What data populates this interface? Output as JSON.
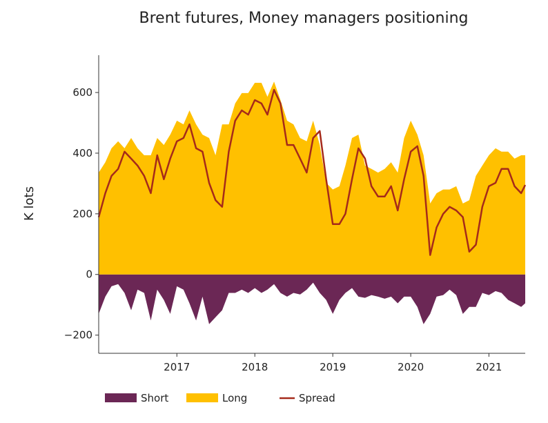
{
  "chart_data": {
    "type": "area",
    "title": "Brent futures, Money managers positioning",
    "xlabel": "",
    "ylabel": "K lots",
    "xlim": [
      "2016-01-01",
      "2021-06-20"
    ],
    "ylim": [
      -260,
      723
    ],
    "yticks": [
      -200,
      0,
      200,
      400,
      600
    ],
    "ytick_labels": [
      "−200",
      "0",
      "200",
      "400",
      "600"
    ],
    "xticks": [
      "2017-01-01",
      "2018-01-01",
      "2019-01-01",
      "2020-01-01",
      "2021-01-01"
    ],
    "xtick_labels": [
      "2017",
      "2018",
      "2019",
      "2020",
      "2021"
    ],
    "grid": false,
    "legend_position": "bottom",
    "x": [
      "2016-01-01",
      "2016-02-01",
      "2016-03-01",
      "2016-04-01",
      "2016-05-01",
      "2016-06-01",
      "2016-07-01",
      "2016-08-01",
      "2016-09-01",
      "2016-10-01",
      "2016-11-01",
      "2016-12-01",
      "2017-01-01",
      "2017-02-01",
      "2017-03-01",
      "2017-04-01",
      "2017-05-01",
      "2017-06-01",
      "2017-07-01",
      "2017-08-01",
      "2017-09-01",
      "2017-10-01",
      "2017-11-01",
      "2017-12-01",
      "2018-01-01",
      "2018-02-01",
      "2018-03-01",
      "2018-04-01",
      "2018-05-01",
      "2018-06-01",
      "2018-07-01",
      "2018-08-01",
      "2018-09-01",
      "2018-10-01",
      "2018-11-01",
      "2018-12-01",
      "2019-01-01",
      "2019-02-01",
      "2019-03-01",
      "2019-04-01",
      "2019-05-01",
      "2019-06-01",
      "2019-07-01",
      "2019-08-01",
      "2019-09-01",
      "2019-10-01",
      "2019-11-01",
      "2019-12-01",
      "2020-01-01",
      "2020-02-01",
      "2020-03-01",
      "2020-04-01",
      "2020-05-01",
      "2020-06-01",
      "2020-07-01",
      "2020-08-01",
      "2020-09-01",
      "2020-10-01",
      "2020-11-01",
      "2020-12-01",
      "2021-01-01",
      "2021-02-01",
      "2021-03-01",
      "2021-04-01",
      "2021-05-01",
      "2021-06-01",
      "2021-06-20"
    ],
    "series": [
      {
        "name": "Short",
        "kind": "area",
        "color": "#6B2755",
        "values": [
          -130,
          -73,
          -39,
          -32,
          -61,
          -118,
          -50,
          -61,
          -152,
          -50,
          -84,
          -130,
          -39,
          -50,
          -95,
          -152,
          -73,
          -164,
          -141,
          -118,
          -61,
          -61,
          -50,
          -61,
          -45,
          -61,
          -50,
          -32,
          -61,
          -73,
          -61,
          -66,
          -50,
          -27,
          -61,
          -84,
          -130,
          -84,
          -61,
          -45,
          -73,
          -77,
          -68,
          -73,
          -80,
          -73,
          -95,
          -73,
          -73,
          -107,
          -164,
          -130,
          -73,
          -68,
          -50,
          -68,
          -130,
          -107,
          -107,
          -61,
          -68,
          -55,
          -61,
          -84,
          -95,
          -107,
          -95
        ]
      },
      {
        "name": "Long",
        "kind": "area",
        "color": "#FFC000",
        "values": [
          336,
          370,
          416,
          439,
          416,
          450,
          416,
          393,
          393,
          450,
          427,
          461,
          507,
          495,
          541,
          495,
          461,
          450,
          393,
          495,
          495,
          564,
          598,
          598,
          632,
          632,
          586,
          636,
          575,
          507,
          495,
          450,
          439,
          507,
          427,
          302,
          280,
          291,
          359,
          450,
          461,
          359,
          348,
          336,
          348,
          370,
          336,
          450,
          507,
          461,
          393,
          234,
          268,
          280,
          280,
          291,
          234,
          245,
          325,
          359,
          393,
          416,
          405,
          405,
          382,
          393,
          393
        ]
      },
      {
        "name": "Spread",
        "kind": "line",
        "color": "#A52A1A",
        "values": [
          189,
          268,
          325,
          348,
          405,
          382,
          359,
          325,
          268,
          393,
          314,
          382,
          439,
          450,
          495,
          416,
          405,
          302,
          245,
          223,
          405,
          507,
          541,
          527,
          575,
          564,
          527,
          609,
          564,
          427,
          427,
          382,
          336,
          450,
          473,
          314,
          166,
          166,
          200,
          314,
          416,
          382,
          291,
          257,
          257,
          291,
          211,
          314,
          405,
          423,
          325,
          64,
          155,
          200,
          223,
          211,
          189,
          75,
          98,
          223,
          291,
          302,
          348,
          348,
          291,
          268,
          295
        ]
      }
    ]
  }
}
